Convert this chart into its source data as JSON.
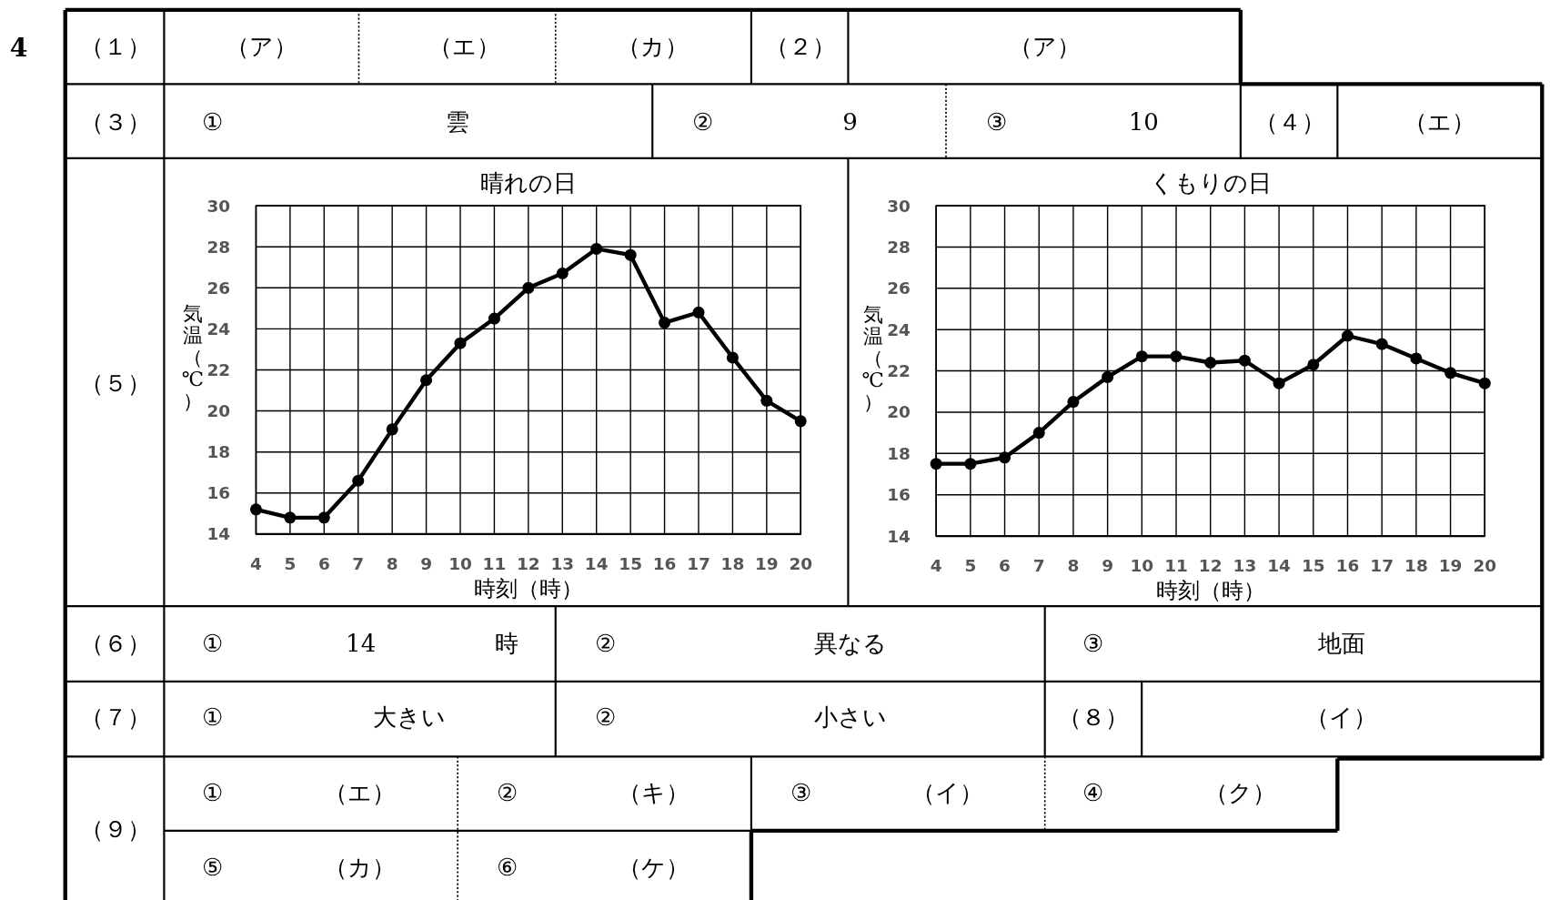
{
  "chart_data": [
    {
      "type": "other",
      "annotations": [
        "4",
        "（１）",
        "（ア）",
        "（エ）",
        "（カ）",
        "（２）",
        "（ア）",
        "（３）",
        "①",
        "雲",
        "②",
        "9",
        "③",
        "10",
        "（４）",
        "（エ）",
        "（５）",
        "（６）",
        "①",
        "14",
        "時",
        "②",
        "異なる",
        "③",
        "地面",
        "（７）",
        "①",
        "大きい",
        "②",
        "小さい",
        "（８）",
        "（イ）",
        "（９）",
        "①",
        "（エ）",
        "②",
        "（キ）",
        "③",
        "（イ）",
        "④",
        "（ク）",
        "⑤",
        "（カ）",
        "⑥",
        "（ケ）"
      ]
    },
    {
      "type": "line",
      "title": "晴れの日",
      "xlabel": "時刻（時）",
      "ylabel": "気温（℃）",
      "x": [
        4,
        5,
        6,
        7,
        8,
        9,
        10,
        11,
        12,
        13,
        14,
        15,
        16,
        17,
        18,
        19,
        20
      ],
      "xlim": [
        4,
        20
      ],
      "xticks": [
        4,
        5,
        6,
        7,
        8,
        9,
        10,
        11,
        12,
        13,
        14,
        15,
        16,
        17,
        18,
        19,
        20
      ],
      "ylim": [
        14,
        30
      ],
      "yticks": [
        14,
        16,
        18,
        20,
        22,
        24,
        26,
        28,
        30
      ],
      "grid": true,
      "marker": "circle",
      "line_style": "solid",
      "series": [
        {
          "color": "#000000",
          "values": [
            15.2,
            14.8,
            14.8,
            16.6,
            19.1,
            21.5,
            23.3,
            24.5,
            26.0,
            26.7,
            27.9,
            27.6,
            24.3,
            24.8,
            22.6,
            20.5,
            19.5
          ]
        }
      ]
    },
    {
      "type": "line",
      "title": "くもりの日",
      "xlabel": "時刻（時）",
      "ylabel": "気温（℃）",
      "x": [
        4,
        5,
        6,
        7,
        8,
        9,
        10,
        11,
        12,
        13,
        14,
        15,
        16,
        17,
        18,
        19,
        20
      ],
      "xlim": [
        4,
        20
      ],
      "xticks": [
        4,
        5,
        6,
        7,
        8,
        9,
        10,
        11,
        12,
        13,
        14,
        15,
        16,
        17,
        18,
        19,
        20
      ],
      "ylim": [
        14,
        30
      ],
      "yticks": [
        14,
        16,
        18,
        20,
        22,
        24,
        26,
        28,
        30
      ],
      "grid": true,
      "marker": "circle",
      "line_style": "solid",
      "series": [
        {
          "color": "#000000",
          "values": [
            17.5,
            17.5,
            17.8,
            19.0,
            20.5,
            21.7,
            22.7,
            22.7,
            22.4,
            22.5,
            21.4,
            22.3,
            23.7,
            23.3,
            22.6,
            21.9,
            21.4
          ]
        }
      ]
    }
  ]
}
